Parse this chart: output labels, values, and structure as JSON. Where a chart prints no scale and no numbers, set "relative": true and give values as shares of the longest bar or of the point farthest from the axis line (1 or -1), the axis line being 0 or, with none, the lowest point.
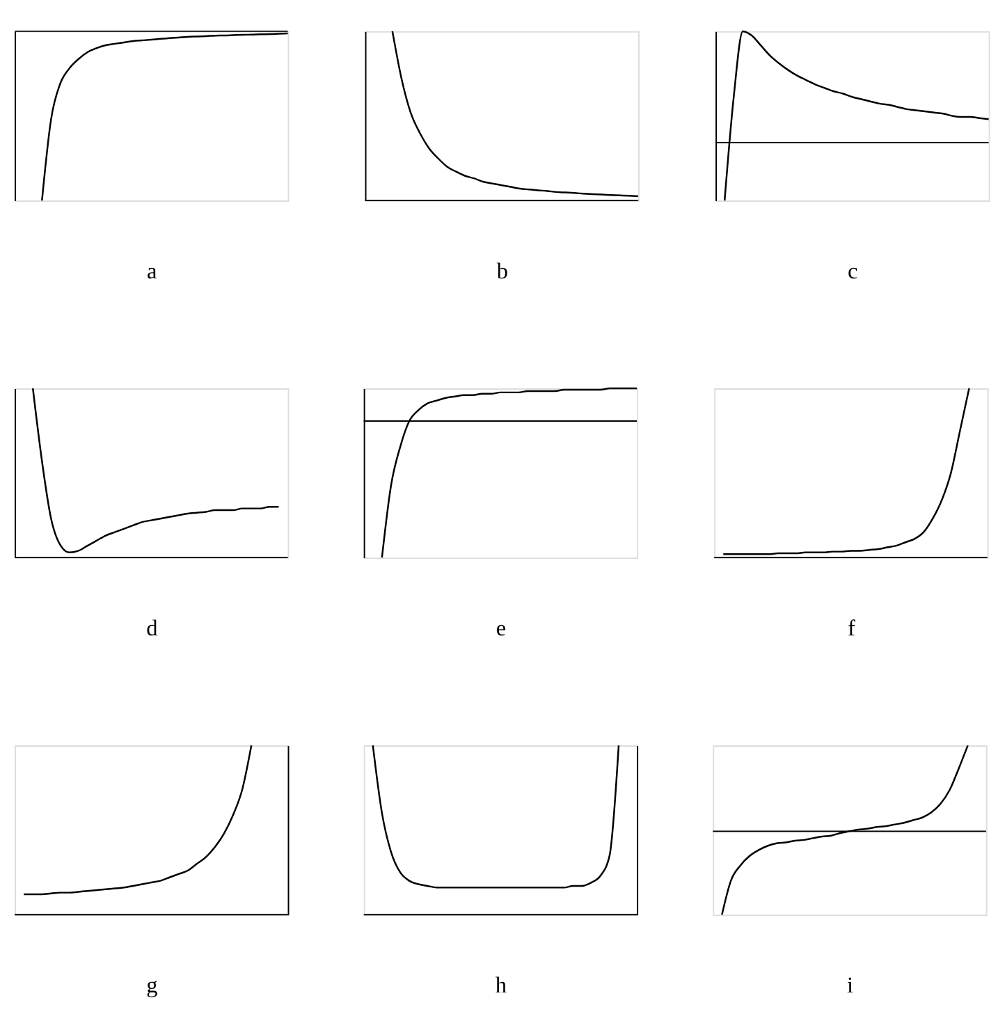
{
  "chart_data": [
    {
      "type": "line",
      "relative": true,
      "xlabel": "a",
      "categories": [
        null,
        null,
        null,
        null,
        null,
        null,
        null,
        null,
        null,
        null,
        null,
        null,
        null,
        null,
        null,
        null,
        null,
        null,
        null,
        null,
        null,
        null,
        null,
        null,
        null,
        null,
        null,
        null,
        null,
        null,
        null
      ],
      "series": [
        {
          "color": "#000000",
          "values": [
            null,
            null,
            null,
            -1,
            -0.52,
            -0.31,
            -0.22,
            -0.165,
            -0.124,
            -0.1,
            -0.083,
            -0.074,
            -0.066,
            -0.058,
            -0.054,
            -0.05,
            -0.045,
            -0.041,
            -0.037,
            -0.033,
            -0.031,
            -0.029,
            -0.026,
            -0.025,
            -0.023,
            -0.021,
            -0.02,
            -0.018,
            -0.017,
            -0.015,
            -0.013
          ]
        }
      ]
    },
    {
      "type": "line",
      "relative": true,
      "xlabel": "b",
      "categories": [
        null,
        null,
        null,
        null,
        null,
        null,
        null,
        null,
        null,
        null,
        null,
        null,
        null,
        null,
        null,
        null,
        null,
        null,
        null,
        null,
        null,
        null,
        null,
        null,
        null,
        null,
        null,
        null,
        null,
        null,
        null
      ],
      "series": [
        {
          "color": "#000000",
          "values": [
            null,
            null,
            null,
            1,
            0.72,
            0.52,
            0.4,
            0.31,
            0.25,
            0.2,
            0.17,
            0.145,
            0.13,
            0.11,
            0.1,
            0.09,
            0.08,
            0.07,
            0.065,
            0.06,
            0.056,
            0.05,
            0.047,
            0.044,
            0.04,
            0.037,
            0.035,
            0.032,
            0.03,
            0.028,
            0.025
          ]
        }
      ]
    },
    {
      "type": "line",
      "relative": true,
      "xlabel": "c",
      "categories": [
        null,
        null,
        null,
        null,
        null,
        null,
        null,
        null,
        null,
        null,
        null,
        null,
        null,
        null,
        null,
        null,
        null,
        null,
        null,
        null,
        null,
        null,
        null,
        null,
        null,
        null,
        null,
        null,
        null,
        null,
        null
      ],
      "series": [
        {
          "color": "#000000",
          "values": [
            null,
            -0.52,
            0.41,
            1,
            0.96,
            0.87,
            0.78,
            0.71,
            0.65,
            0.6,
            0.56,
            0.52,
            0.49,
            0.46,
            0.44,
            0.41,
            0.39,
            0.37,
            0.35,
            0.34,
            0.32,
            0.3,
            0.29,
            0.28,
            0.27,
            0.26,
            0.24,
            0.23,
            0.23,
            0.22,
            0.21
          ]
        }
      ]
    },
    {
      "type": "line",
      "relative": true,
      "xlabel": "d",
      "categories": [
        null,
        null,
        null,
        null,
        null,
        null,
        null,
        null,
        null,
        null,
        null,
        null,
        null,
        null,
        null,
        null,
        null,
        null,
        null,
        null,
        null,
        null,
        null,
        null,
        null,
        null,
        null,
        null,
        null,
        null,
        null
      ],
      "series": [
        {
          "color": "#000000",
          "values": [
            null,
            null,
            1,
            0.57,
            0.23,
            0.075,
            0.03,
            0.04,
            0.07,
            0.1,
            0.13,
            0.15,
            0.17,
            0.19,
            0.21,
            0.22,
            0.23,
            0.24,
            0.25,
            0.26,
            0.265,
            0.27,
            0.28,
            0.28,
            0.28,
            0.29,
            0.29,
            0.29,
            0.3,
            0.3,
            null
          ]
        }
      ]
    },
    {
      "type": "line",
      "relative": true,
      "xlabel": "e",
      "categories": [
        null,
        null,
        null,
        null,
        null,
        null,
        null,
        null,
        null,
        null,
        null,
        null,
        null,
        null,
        null,
        null,
        null,
        null,
        null,
        null,
        null,
        null,
        null,
        null,
        null,
        null,
        null,
        null,
        null,
        null,
        null
      ],
      "series": [
        {
          "color": "#000000",
          "values": [
            null,
            null,
            -1,
            -0.47,
            -0.19,
            0,
            0.08,
            0.13,
            0.15,
            0.17,
            0.18,
            0.19,
            0.19,
            0.2,
            0.2,
            0.21,
            0.21,
            0.21,
            0.22,
            0.22,
            0.22,
            0.22,
            0.23,
            0.23,
            0.23,
            0.23,
            0.23,
            0.24,
            0.24,
            0.24,
            0.24
          ]
        }
      ]
    },
    {
      "type": "line",
      "relative": true,
      "xlabel": "f",
      "categories": [
        null,
        null,
        null,
        null,
        null,
        null,
        null,
        null,
        null,
        null,
        null,
        null,
        null,
        null,
        null,
        null,
        null,
        null,
        null,
        null,
        null,
        null,
        null,
        null,
        null,
        null,
        null,
        null,
        null,
        null,
        null
      ],
      "series": [
        {
          "color": "#000000",
          "values": [
            null,
            0.02,
            0.02,
            0.02,
            0.02,
            0.02,
            0.02,
            0.025,
            0.025,
            0.025,
            0.03,
            0.03,
            0.03,
            0.035,
            0.035,
            0.04,
            0.04,
            0.045,
            0.05,
            0.06,
            0.07,
            0.09,
            0.11,
            0.15,
            0.23,
            0.34,
            0.5,
            0.75,
            1,
            null,
            null
          ]
        }
      ]
    },
    {
      "type": "line",
      "relative": true,
      "xlabel": "g",
      "categories": [
        null,
        null,
        null,
        null,
        null,
        null,
        null,
        null,
        null,
        null,
        null,
        null,
        null,
        null,
        null,
        null,
        null,
        null,
        null,
        null,
        null,
        null,
        null,
        null,
        null,
        null,
        null,
        null,
        null,
        null,
        null
      ],
      "series": [
        {
          "color": "#000000",
          "values": [
            null,
            0.12,
            0.12,
            0.12,
            0.125,
            0.13,
            0.13,
            0.135,
            0.14,
            0.145,
            0.15,
            0.155,
            0.16,
            0.17,
            0.18,
            0.19,
            0.2,
            0.22,
            0.24,
            0.26,
            0.3,
            0.34,
            0.4,
            0.48,
            0.59,
            0.74,
            1,
            null,
            null,
            null,
            null
          ]
        }
      ]
    },
    {
      "type": "line",
      "relative": true,
      "xlabel": "h",
      "categories": [
        null,
        null,
        null,
        null,
        null,
        null,
        null,
        null,
        null,
        null,
        null,
        null,
        null,
        null,
        null,
        null,
        null,
        null,
        null,
        null,
        null,
        null,
        null,
        null,
        null,
        null,
        null,
        null,
        null,
        null,
        null
      ],
      "series": [
        {
          "color": "#000000",
          "values": [
            null,
            1,
            0.6,
            0.37,
            0.25,
            0.2,
            0.18,
            0.17,
            0.16,
            0.16,
            0.16,
            0.16,
            0.16,
            0.16,
            0.16,
            0.16,
            0.16,
            0.16,
            0.16,
            0.16,
            0.16,
            0.16,
            0.16,
            0.17,
            0.17,
            0.19,
            0.23,
            0.35,
            1,
            null,
            null
          ]
        }
      ]
    },
    {
      "type": "line",
      "relative": true,
      "xlabel": "i",
      "categories": [
        null,
        null,
        null,
        null,
        null,
        null,
        null,
        null,
        null,
        null,
        null,
        null,
        null,
        null,
        null,
        null,
        null,
        null,
        null,
        null,
        null,
        null,
        null,
        null,
        null,
        null,
        null,
        null,
        null,
        null,
        null
      ],
      "series": [
        {
          "color": "#000000",
          "values": [
            null,
            -0.97,
            -0.57,
            -0.4,
            -0.29,
            -0.22,
            -0.17,
            -0.14,
            -0.13,
            -0.11,
            -0.1,
            -0.08,
            -0.06,
            -0.05,
            -0.02,
            0,
            0.02,
            0.03,
            0.05,
            0.06,
            0.08,
            0.1,
            0.13,
            0.16,
            0.22,
            0.32,
            0.48,
            0.73,
            1,
            null,
            null
          ]
        }
      ]
    }
  ]
}
